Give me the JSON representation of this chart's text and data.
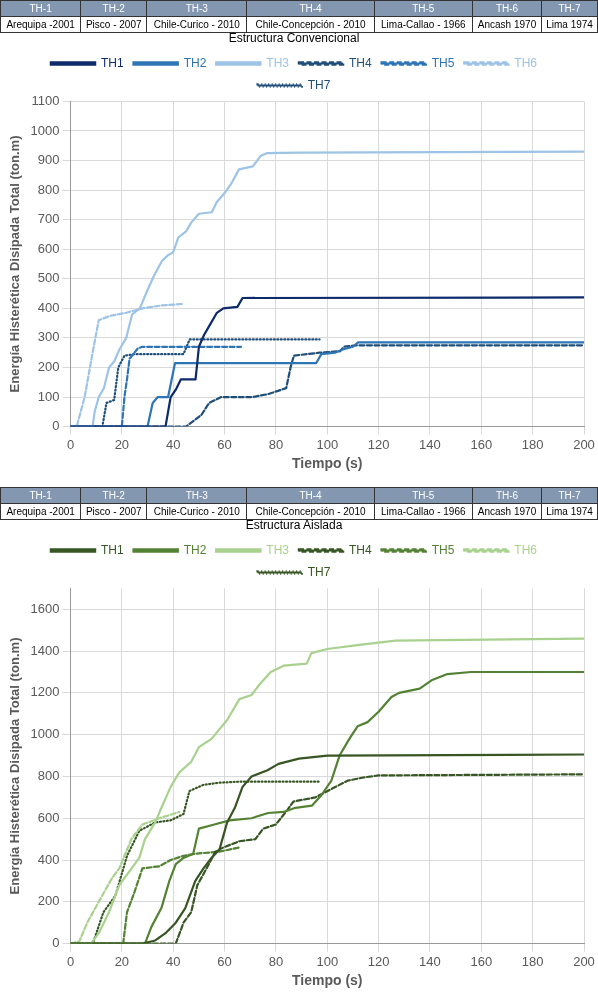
{
  "chart_data": [
    {
      "type": "line",
      "legend_title": "Estructura Convencional",
      "xlabel": "Tiempo (s)",
      "ylabel": "Energía Histerética Disipada Total (ton.m)",
      "annotations": [
        "TH-1",
        "TH-2",
        "TH-3",
        "TH-4",
        "TH-5",
        "TH-6",
        "TH-7",
        "Arequipa -2001",
        "Pisco - 2007",
        "Chile-Curico - 2010",
        "Chile-Concepción - 2010",
        "Lima-Callao - 1966",
        "Ancash 1970",
        "Lima 1974"
      ],
      "xlim": [
        0,
        200
      ],
      "xticks": [
        0,
        20,
        40,
        60,
        80,
        100,
        120,
        140,
        160,
        180,
        200
      ],
      "ylim": [
        0,
        1100
      ],
      "yticks": [
        0,
        100,
        200,
        300,
        400,
        500,
        600,
        700,
        800,
        900,
        1000,
        1100
      ],
      "grid": true,
      "legend": "top",
      "marker": "none",
      "series": [
        {
          "name": "TH1",
          "color": "#0d2a6b",
          "line_style": "solid",
          "x": [
            0,
            37,
            39,
            41,
            43,
            48.7,
            50,
            52,
            54,
            57,
            59.5,
            65,
            67,
            200
          ],
          "values": [
            0,
            0,
            100,
            125,
            160,
            160,
            270,
            310,
            340,
            385,
            400,
            405,
            435,
            437
          ]
        },
        {
          "name": "TH2",
          "color": "#2e75b6",
          "line_style": "solid",
          "x": [
            0,
            30,
            32,
            34,
            38,
            40.7,
            95.7,
            97.7,
            103,
            105.7,
            110,
            112,
            200
          ],
          "values": [
            0,
            0,
            80,
            100,
            100,
            215,
            215,
            245,
            250,
            260,
            270,
            285,
            285
          ]
        },
        {
          "name": "TH3",
          "color": "#9dc3e6",
          "line_style": "solid",
          "x": [
            0,
            8.6,
            9.4,
            11,
            13,
            15,
            17,
            19,
            21.7,
            24,
            27,
            29.4,
            32.5,
            35.6,
            38,
            40,
            42,
            45,
            47,
            50,
            55,
            57,
            60,
            62.5,
            65.6,
            71,
            74,
            76.4,
            89.5,
            200
          ],
          "values": [
            0,
            0,
            50,
            100,
            130,
            200,
            220,
            260,
            300,
            380,
            400,
            450,
            510,
            560,
            580,
            590,
            640,
            660,
            690,
            720,
            725,
            760,
            790,
            820,
            870,
            880,
            915,
            925,
            927,
            930
          ]
        },
        {
          "name": "TH4",
          "color": "#1f4e79",
          "line_style": "dashed",
          "x": [
            0,
            45,
            48,
            51,
            54,
            58.7,
            71,
            77,
            84,
            85.7,
            87,
            97,
            105,
            106.5,
            111,
            200
          ],
          "values": [
            0,
            0,
            20,
            40,
            80,
            100,
            100,
            110,
            130,
            200,
            240,
            250,
            255,
            270,
            275,
            275
          ]
        },
        {
          "name": "TH5",
          "color": "#2e75b6",
          "line_style": "dashed",
          "x": [
            0,
            20,
            21,
            22,
            23,
            26.3,
            28,
            66.4
          ],
          "values": [
            0,
            0,
            100,
            160,
            230,
            265,
            270,
            270
          ]
        },
        {
          "name": "TH6",
          "color": "#9dc3e6",
          "line_style": "dashed",
          "x": [
            0,
            2.4,
            5.5,
            8.6,
            11,
            15.6,
            21.7,
            28,
            35.6,
            44
          ],
          "values": [
            0,
            0,
            100,
            250,
            360,
            375,
            385,
            400,
            410,
            415
          ]
        },
        {
          "name": "TH7",
          "color": "#1f4e79",
          "line_style": "dotted",
          "x": [
            0,
            12.4,
            14,
            17,
            18.6,
            21,
            25,
            44,
            46.4,
            97
          ],
          "values": [
            0,
            0,
            80,
            90,
            200,
            240,
            245,
            245,
            295,
            295
          ]
        }
      ]
    },
    {
      "type": "line",
      "legend_title": "Estructura Aislada",
      "xlabel": "Tiempo (s)",
      "ylabel": "Energía Histerética Disipada Total (ton.m)",
      "annotations": [
        "TH-1",
        "TH-2",
        "TH-3",
        "TH-4",
        "TH-5",
        "TH-6",
        "TH-7",
        "Arequipa -2001",
        "Pisco - 2007",
        "Chile-Curico - 2010",
        "Chile-Concepción - 2010",
        "Lima-Callao - 1966",
        "Ancash 1970",
        "Lima 1974"
      ],
      "xlim": [
        0,
        200
      ],
      "xticks": [
        0,
        20,
        40,
        60,
        80,
        100,
        120,
        140,
        160,
        180,
        200
      ],
      "ylim": [
        0,
        1700
      ],
      "yticks": [
        0,
        200,
        400,
        600,
        800,
        1000,
        1200,
        1400,
        1600
      ],
      "grid": true,
      "legend": "top",
      "marker": "none",
      "series": [
        {
          "name": "TH1",
          "color": "#375623",
          "line_style": "solid",
          "x": [
            0,
            28,
            33,
            37,
            41,
            44.7,
            48.6,
            51.8,
            54.9,
            58,
            61,
            64,
            67,
            70.5,
            76.7,
            81,
            89,
            100,
            200
          ],
          "values": [
            0,
            0,
            15,
            50,
            100,
            170,
            300,
            360,
            410,
            450,
            580,
            650,
            750,
            800,
            830,
            860,
            885,
            900,
            905
          ]
        },
        {
          "name": "TH2",
          "color": "#548235",
          "line_style": "solid",
          "x": [
            0,
            29,
            31.5,
            35.4,
            38.5,
            41,
            44,
            47.8,
            50,
            56,
            62,
            70.5,
            77,
            83,
            87.6,
            94,
            97.7,
            101.6,
            104.8,
            108.6,
            111.8,
            115.7,
            120,
            125,
            128,
            136,
            140.6,
            146.8,
            156,
            200
          ],
          "values": [
            0,
            0,
            80,
            170,
            300,
            380,
            410,
            430,
            550,
            570,
            590,
            600,
            625,
            630,
            650,
            660,
            710,
            780,
            900,
            980,
            1040,
            1060,
            1110,
            1180,
            1200,
            1220,
            1260,
            1290,
            1300,
            1300
          ]
        },
        {
          "name": "TH3",
          "color": "#a9d18e",
          "line_style": "solid",
          "x": [
            0,
            8,
            11,
            15,
            19,
            22,
            26.8,
            29,
            33,
            35.4,
            39,
            42.4,
            47,
            50,
            54.9,
            61,
            65.8,
            70.5,
            73.6,
            78,
            83,
            92,
            93.8,
            100,
            112.5,
            126.6,
            200
          ],
          "values": [
            0,
            0,
            50,
            150,
            280,
            330,
            410,
            500,
            580,
            650,
            750,
            820,
            870,
            940,
            980,
            1070,
            1170,
            1190,
            1240,
            1300,
            1330,
            1340,
            1390,
            1410,
            1430,
            1450,
            1460
          ]
        },
        {
          "name": "TH4",
          "color": "#375623",
          "line_style": "dashed",
          "x": [
            0,
            41,
            44,
            47,
            49.4,
            53,
            56.4,
            59.5,
            65.8,
            72,
            75,
            80,
            84.5,
            86.8,
            95.4,
            101.6,
            108,
            114,
            120,
            200
          ],
          "values": [
            0,
            0,
            100,
            150,
            280,
            360,
            440,
            460,
            490,
            500,
            550,
            570,
            640,
            680,
            700,
            740,
            780,
            795,
            805,
            810
          ]
        },
        {
          "name": "TH5",
          "color": "#548235",
          "line_style": "dashed",
          "x": [
            0,
            20.5,
            22,
            25,
            28,
            34.6,
            39,
            44,
            48.6,
            58,
            65.8
          ],
          "values": [
            0,
            0,
            150,
            250,
            360,
            370,
            400,
            420,
            430,
            440,
            460
          ]
        },
        {
          "name": "TH6",
          "color": "#a9d18e",
          "line_style": "dashed",
          "x": [
            0,
            3.4,
            6.5,
            11,
            16,
            19,
            23.7,
            28,
            34.6,
            42.4
          ],
          "values": [
            0,
            10,
            100,
            200,
            310,
            360,
            500,
            570,
            600,
            630
          ]
        },
        {
          "name": "TH7",
          "color": "#375623",
          "line_style": "dotted",
          "x": [
            0,
            8.7,
            12.8,
            17.5,
            22,
            26.8,
            33,
            39,
            44,
            46.3,
            51.8,
            58,
            65.8,
            97
          ],
          "values": [
            0,
            0,
            150,
            230,
            420,
            540,
            580,
            590,
            620,
            730,
            760,
            770,
            775,
            775
          ]
        }
      ]
    }
  ]
}
